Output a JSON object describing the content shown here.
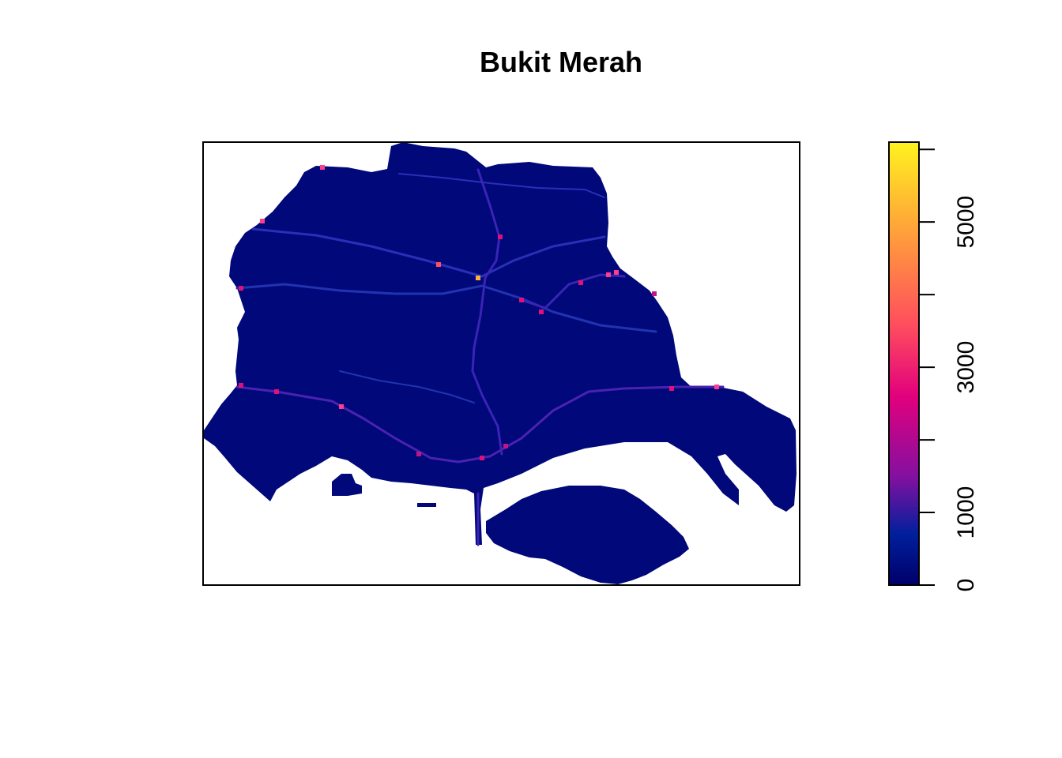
{
  "title": "Bukit Merah",
  "colors": {
    "background": "#ffffff",
    "region_fill": "#00087a",
    "frame": "#000000"
  },
  "legend": {
    "placement": "right",
    "range": [
      0,
      6100
    ],
    "ticks": [
      "0",
      "1000",
      "3000",
      "5000"
    ],
    "tick_values": [
      0,
      1000,
      2000,
      3000,
      4000,
      5000,
      6000
    ],
    "gradient_stops": [
      {
        "value": 0,
        "color": "#00006a"
      },
      {
        "value": 700,
        "color": "#001f9c"
      },
      {
        "value": 1500,
        "color": "#8410a0"
      },
      {
        "value": 2600,
        "color": "#e2007d"
      },
      {
        "value": 3600,
        "color": "#ff4f5d"
      },
      {
        "value": 4800,
        "color": "#ff9c3c"
      },
      {
        "value": 6100,
        "color": "#fff21f"
      }
    ]
  }
}
